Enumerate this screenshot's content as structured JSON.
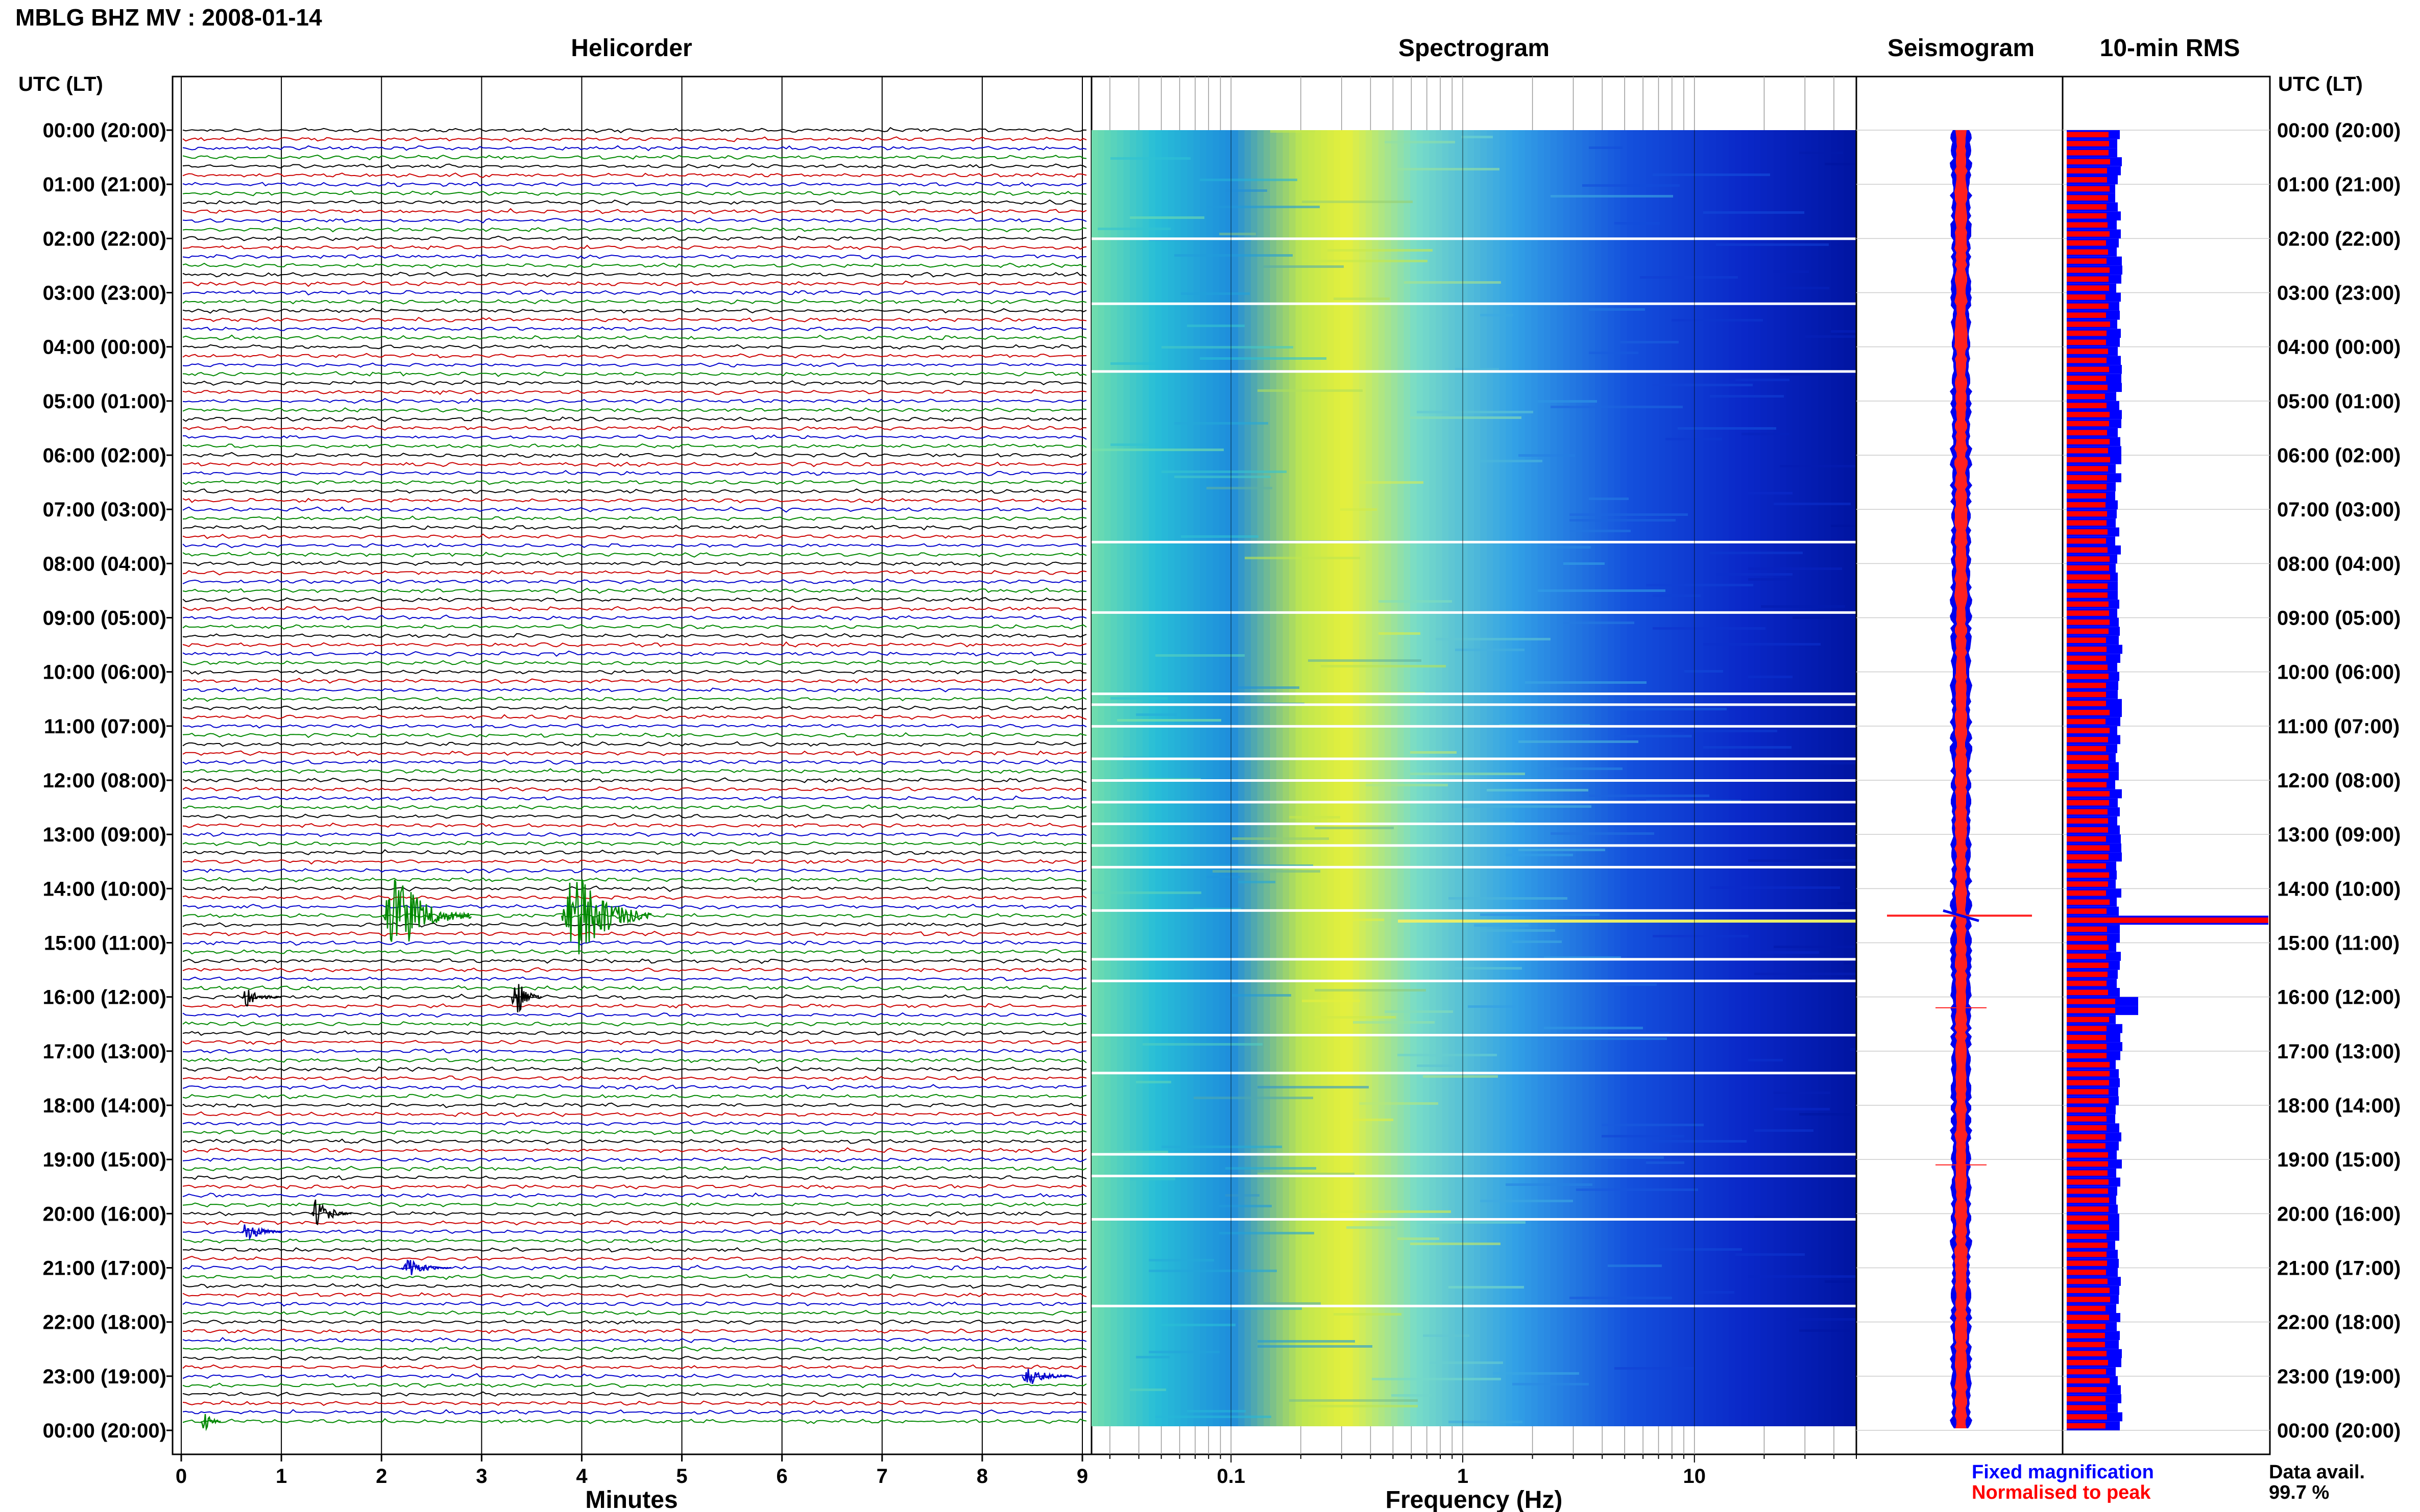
{
  "header": {
    "title": "MBLG BHZ MV : 2008-01-14",
    "time_axis_label_left": "UTC (LT)",
    "time_axis_label_right": "UTC (LT)"
  },
  "panels": {
    "helicorder": {
      "title": "Helicorder"
    },
    "spectrogram": {
      "title": "Spectrogram"
    },
    "seismogram": {
      "title": "Seismogram"
    },
    "rms": {
      "title": "10-min RMS"
    }
  },
  "legend": {
    "fixed": "Fixed magnification",
    "normalised": "Normalised to peak",
    "fixed_color": "#0000ff",
    "normalised_color": "#ff0000"
  },
  "data_availability": {
    "label": "Data avail.",
    "value": "99.7 %"
  },
  "chart_data": [
    {
      "type": "helicorder",
      "title": "Helicorder",
      "xlabel": "Minutes",
      "x_ticks": [
        0,
        1,
        2,
        3,
        4,
        5,
        6,
        7,
        8,
        9
      ],
      "xlim": [
        0,
        10
      ],
      "hour_labels": [
        "00:00 (20:00)",
        "01:00 (21:00)",
        "02:00 (22:00)",
        "03:00 (23:00)",
        "04:00 (00:00)",
        "05:00 (01:00)",
        "06:00 (02:00)",
        "07:00 (03:00)",
        "08:00 (04:00)",
        "09:00 (05:00)",
        "10:00 (06:00)",
        "11:00 (07:00)",
        "12:00 (08:00)",
        "13:00 (09:00)",
        "14:00 (10:00)",
        "15:00 (11:00)",
        "16:00 (12:00)",
        "17:00 (13:00)",
        "18:00 (14:00)",
        "19:00 (15:00)",
        "20:00 (16:00)",
        "21:00 (17:00)",
        "22:00 (18:00)",
        "23:00 (19:00)",
        "00:00 (20:00)"
      ],
      "lines_per_hour": 6,
      "trace_colors": [
        "#000000",
        "#cc0000",
        "#0000cc",
        "#008800"
      ],
      "events": [
        {
          "line": 87,
          "minute": 2.0,
          "duration": 0.9,
          "amp": 3.5
        },
        {
          "line": 87,
          "minute": 3.8,
          "duration": 0.9,
          "amp": 4.0
        },
        {
          "line": 96,
          "minute": 3.3,
          "duration": 0.3,
          "amp": 1.6
        },
        {
          "line": 96,
          "minute": 0.6,
          "duration": 0.4,
          "amp": 0.7
        },
        {
          "line": 120,
          "minute": 1.3,
          "duration": 0.4,
          "amp": 1.2
        },
        {
          "line": 122,
          "minute": 0.6,
          "duration": 0.4,
          "amp": 0.8
        },
        {
          "line": 126,
          "minute": 2.2,
          "duration": 0.5,
          "amp": 0.7
        },
        {
          "line": 138,
          "minute": 8.4,
          "duration": 0.5,
          "amp": 0.8
        },
        {
          "line": 143,
          "minute": 0.2,
          "duration": 0.2,
          "amp": 1.0
        }
      ]
    },
    {
      "type": "heatmap",
      "title": "Spectrogram",
      "xlabel": "Frequency (Hz)",
      "x_scale": "log",
      "xlim": [
        0.025,
        50
      ],
      "x_tick_labels": [
        "0.1",
        "1",
        "10"
      ]
    },
    {
      "type": "seismogram",
      "title": "Seismogram"
    },
    {
      "type": "bar",
      "title": "10-min RMS",
      "series": [
        {
          "name": "Fixed magnification",
          "color": "#0000ff"
        },
        {
          "name": "Normalised to peak",
          "color": "#ff0000"
        }
      ],
      "peak_hour": 14.5
    }
  ]
}
